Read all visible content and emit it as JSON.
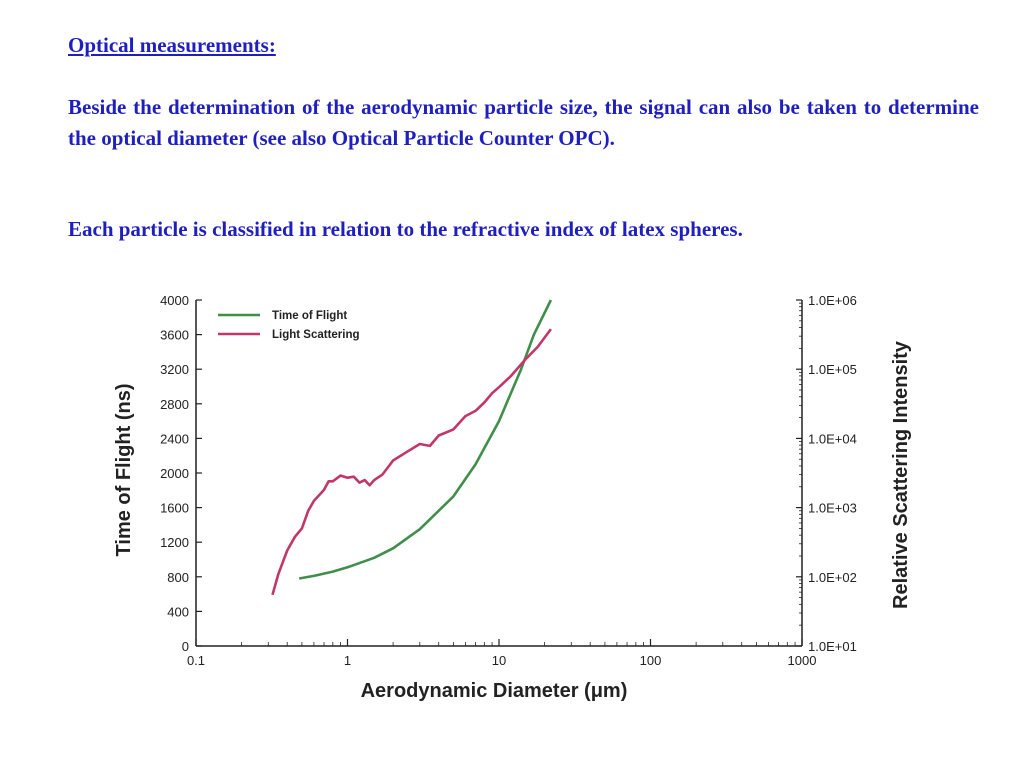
{
  "slide": {
    "heading": "Optical measurements:",
    "paragraph1": "Beside the determination of the aerodynamic particle size, the signal can also be taken to determine the optical diameter (see also Optical Particle Counter OPC).",
    "paragraph2": "Each particle is classified in relation to the refractive index of latex spheres."
  },
  "colors": {
    "text": "#1f1fbf",
    "time_of_flight": "#3f8f4a",
    "light_scattering": "#c2376b"
  },
  "chart_data": {
    "type": "line",
    "xlabel": "Aerodynamic Diameter (μm)",
    "ylabel": "Time of Flight (ns)",
    "y2label": "Relative Scattering Intensity",
    "x_scale": "log",
    "xlim": [
      0.1,
      1000
    ],
    "ylim": [
      0,
      4000
    ],
    "y2_scale": "log",
    "y2lim": [
      10,
      1000000
    ],
    "x_ticks": [
      "0.1",
      "1",
      "10",
      "100",
      "1000"
    ],
    "y_ticks": [
      "0",
      "400",
      "800",
      "1200",
      "1600",
      "2000",
      "2400",
      "2800",
      "3200",
      "3600",
      "4000"
    ],
    "y2_ticks": [
      "1.0E+01",
      "1.0E+02",
      "1.0E+03",
      "1.0E+04",
      "1.0E+05",
      "1.0E+06"
    ],
    "grid": false,
    "legend_position": "top-left",
    "series": [
      {
        "name": "Time of Flight",
        "axis": "left",
        "color": "#3f8f4a",
        "x": [
          0.48,
          0.6,
          0.8,
          1.0,
          1.5,
          2.0,
          3.0,
          5.0,
          7.0,
          10.0,
          14.0,
          17.0,
          22.0
        ],
        "y": [
          780,
          810,
          860,
          910,
          1020,
          1130,
          1350,
          1730,
          2100,
          2600,
          3200,
          3600,
          4000
        ]
      },
      {
        "name": "Light Scattering",
        "axis": "right",
        "color": "#c2376b",
        "x": [
          0.32,
          0.35,
          0.4,
          0.45,
          0.5,
          0.55,
          0.6,
          0.7,
          0.75,
          0.8,
          0.9,
          1.0,
          1.1,
          1.2,
          1.3,
          1.4,
          1.5,
          1.7,
          2.0,
          2.5,
          3.0,
          3.5,
          4.0,
          5.0,
          6.0,
          7.0,
          8.0,
          9.0,
          10.0,
          12.0,
          15.0,
          18.0,
          22.0
        ],
        "y": [
          55,
          110,
          240,
          380,
          500,
          900,
          1250,
          1800,
          2400,
          2400,
          2900,
          2700,
          2800,
          2300,
          2500,
          2100,
          2500,
          3000,
          4800,
          6500,
          8300,
          7800,
          11000,
          13500,
          21000,
          25000,
          33000,
          45000,
          55000,
          80000,
          140000,
          210000,
          380000
        ]
      }
    ]
  }
}
